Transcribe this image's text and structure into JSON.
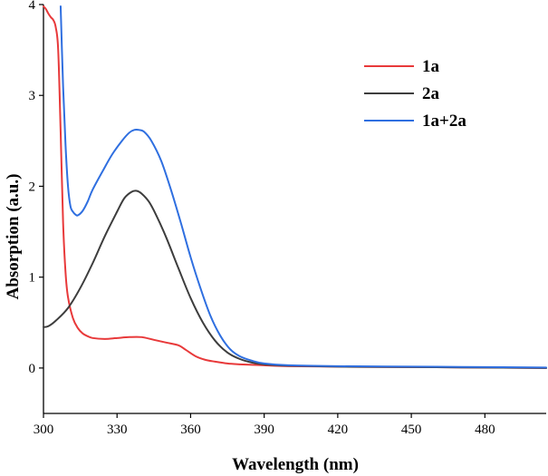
{
  "chart_data": {
    "type": "line",
    "title": "",
    "xlabel": "Wavelength (nm)",
    "ylabel": "Absorption (a.u.)",
    "xlim": [
      300,
      505
    ],
    "ylim": [
      -0.5,
      4
    ],
    "x_ticks": [
      300,
      330,
      360,
      390,
      420,
      450,
      480
    ],
    "x_tick_labels": [
      "300",
      "330",
      "360",
      "390",
      "420",
      "450",
      "480"
    ],
    "y_ticks": [
      0,
      1,
      2,
      3,
      4
    ],
    "y_tick_labels": [
      "0",
      "1",
      "2",
      "3",
      "4"
    ],
    "grid": false,
    "legend_position": "top-right",
    "series": [
      {
        "name": "1a",
        "color": "#e8393a",
        "points": [
          [
            300,
            3.98
          ],
          [
            301,
            3.95
          ],
          [
            302,
            3.9
          ],
          [
            303,
            3.86
          ],
          [
            304,
            3.83
          ],
          [
            305,
            3.75
          ],
          [
            306,
            3.5
          ],
          [
            307,
            2.6
          ],
          [
            308,
            1.6
          ],
          [
            309,
            1.05
          ],
          [
            310,
            0.78
          ],
          [
            312,
            0.55
          ],
          [
            314,
            0.44
          ],
          [
            316,
            0.38
          ],
          [
            318,
            0.35
          ],
          [
            320,
            0.33
          ],
          [
            325,
            0.32
          ],
          [
            330,
            0.33
          ],
          [
            335,
            0.34
          ],
          [
            340,
            0.34
          ],
          [
            345,
            0.31
          ],
          [
            350,
            0.28
          ],
          [
            355,
            0.25
          ],
          [
            358,
            0.2
          ],
          [
            362,
            0.13
          ],
          [
            366,
            0.09
          ],
          [
            370,
            0.07
          ],
          [
            375,
            0.05
          ],
          [
            380,
            0.04
          ],
          [
            390,
            0.03
          ],
          [
            400,
            0.02
          ],
          [
            420,
            0.015
          ],
          [
            450,
            0.01
          ],
          [
            480,
            0.005
          ],
          [
            505,
            0.0
          ]
        ]
      },
      {
        "name": "2a",
        "color": "#3d3d3d",
        "points": [
          [
            300,
            0.45
          ],
          [
            302,
            0.46
          ],
          [
            305,
            0.52
          ],
          [
            310,
            0.66
          ],
          [
            315,
            0.88
          ],
          [
            320,
            1.15
          ],
          [
            325,
            1.45
          ],
          [
            330,
            1.72
          ],
          [
            333,
            1.87
          ],
          [
            336,
            1.94
          ],
          [
            338,
            1.95
          ],
          [
            340,
            1.92
          ],
          [
            343,
            1.83
          ],
          [
            346,
            1.68
          ],
          [
            350,
            1.44
          ],
          [
            355,
            1.1
          ],
          [
            360,
            0.77
          ],
          [
            365,
            0.5
          ],
          [
            370,
            0.3
          ],
          [
            375,
            0.17
          ],
          [
            380,
            0.1
          ],
          [
            385,
            0.06
          ],
          [
            390,
            0.04
          ],
          [
            400,
            0.025
          ],
          [
            420,
            0.015
          ],
          [
            450,
            0.01
          ],
          [
            480,
            0.005
          ],
          [
            505,
            0.0
          ]
        ]
      },
      {
        "name": "1a+2a",
        "color": "#2f6fe0",
        "points": [
          [
            307,
            3.98
          ],
          [
            308,
            3.1
          ],
          [
            309,
            2.45
          ],
          [
            310,
            2.0
          ],
          [
            311,
            1.78
          ],
          [
            312,
            1.72
          ],
          [
            313,
            1.69
          ],
          [
            314,
            1.68
          ],
          [
            316,
            1.73
          ],
          [
            318,
            1.83
          ],
          [
            320,
            1.96
          ],
          [
            324,
            2.16
          ],
          [
            328,
            2.35
          ],
          [
            332,
            2.5
          ],
          [
            335,
            2.59
          ],
          [
            337,
            2.62
          ],
          [
            339,
            2.62
          ],
          [
            341,
            2.6
          ],
          [
            344,
            2.5
          ],
          [
            348,
            2.28
          ],
          [
            352,
            1.96
          ],
          [
            356,
            1.6
          ],
          [
            360,
            1.22
          ],
          [
            364,
            0.88
          ],
          [
            368,
            0.58
          ],
          [
            372,
            0.36
          ],
          [
            376,
            0.21
          ],
          [
            380,
            0.13
          ],
          [
            385,
            0.08
          ],
          [
            390,
            0.05
          ],
          [
            400,
            0.03
          ],
          [
            420,
            0.02
          ],
          [
            450,
            0.015
          ],
          [
            480,
            0.01
          ],
          [
            505,
            0.005
          ]
        ]
      }
    ]
  }
}
